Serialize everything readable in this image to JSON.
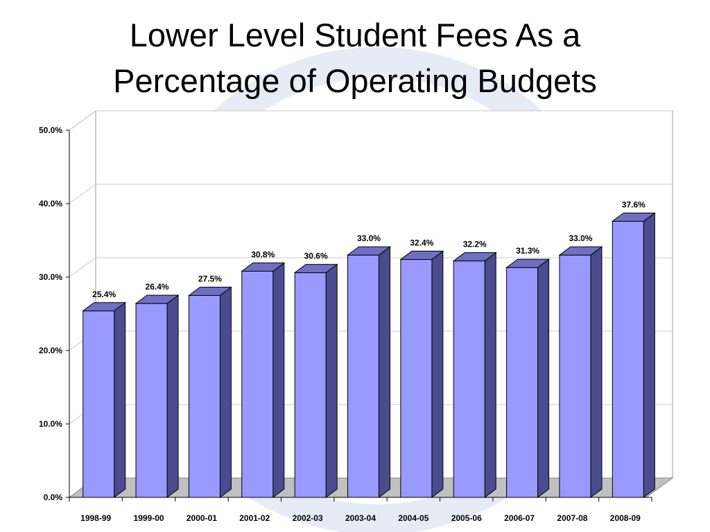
{
  "slide": {
    "title_lines": [
      "Lower Level Student Fees As a",
      "Percentage of Operating Budgets"
    ]
  },
  "colors": {
    "bar_front": "#9999ff",
    "bar_side": "#4b4b8f",
    "bar_top": "#6f6fc4",
    "floor": "#c0c0c0",
    "gridline": "#c8c8c8",
    "watermark": "#e6ecf6"
  },
  "chart_data": {
    "type": "bar",
    "title": "Lower Level Student Fees As a Percentage of Operating Budgets",
    "categories": [
      "1998-99",
      "1999-00",
      "2000-01",
      "2001-02",
      "2002-03",
      "2003-04",
      "2004-05",
      "2005-06",
      "2006-07",
      "2007-08",
      "2008-09"
    ],
    "values": [
      25.4,
      26.4,
      27.5,
      30.8,
      30.6,
      33.0,
      32.4,
      32.2,
      31.3,
      33.0,
      37.6
    ],
    "data_labels": [
      "25.4%",
      "26.4%",
      "27.5%",
      "30.8%",
      "30.6%",
      "33.0%",
      "32.4%",
      "32.2%",
      "31.3%",
      "33.0%",
      "37.6%"
    ],
    "ylim": [
      0,
      50
    ],
    "yticks": [
      0,
      10,
      20,
      30,
      40,
      50
    ],
    "ytick_labels": [
      "0.0%",
      "10.0%",
      "20.0%",
      "30.0%",
      "40.0%",
      "50.0%"
    ],
    "xlabel": "",
    "ylabel": "",
    "grid": true,
    "legend": false,
    "style": "3d-column"
  }
}
